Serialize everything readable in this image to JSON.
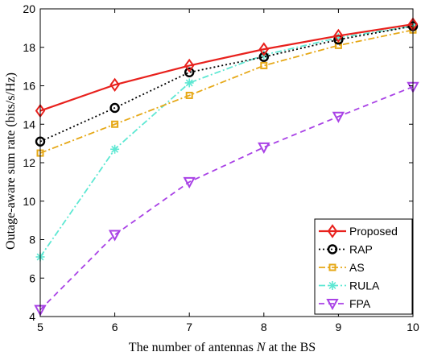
{
  "chart_data": {
    "type": "line",
    "xlabel_prefix": "The number of antennas ",
    "xlabel_var": "N",
    "xlabel_suffix": " at the BS",
    "ylabel": "Outage-aware sum rate (bits/s/Hz)",
    "x": [
      5,
      6,
      7,
      8,
      9,
      10
    ],
    "xlim": [
      5,
      10
    ],
    "ylim": [
      4,
      20
    ],
    "xticks": [
      5,
      6,
      7,
      8,
      9,
      10
    ],
    "yticks": [
      4,
      6,
      8,
      10,
      12,
      14,
      16,
      18,
      20
    ],
    "grid": false,
    "legend_position": "bottom-right",
    "series": [
      {
        "name": "Proposed",
        "values": [
          14.7,
          16.05,
          17.05,
          17.9,
          18.6,
          19.2
        ],
        "color": "#e8211d",
        "dash": "solid",
        "marker": "diamond"
      },
      {
        "name": "RAP",
        "values": [
          13.1,
          14.85,
          16.7,
          17.5,
          18.4,
          19.1
        ],
        "color": "#000000",
        "dash": "dotted",
        "marker": "circle"
      },
      {
        "name": "AS",
        "values": [
          12.5,
          14.0,
          15.5,
          17.05,
          18.1,
          18.9
        ],
        "color": "#e6a817",
        "dash": "dashdot",
        "marker": "square"
      },
      {
        "name": "RULA",
        "values": [
          7.1,
          12.7,
          16.15,
          17.6,
          18.5,
          19.1
        ],
        "color": "#5ee8d3",
        "dash": "dashdot",
        "marker": "asterisk"
      },
      {
        "name": "FPA",
        "values": [
          4.35,
          8.25,
          11.0,
          12.8,
          14.4,
          15.95
        ],
        "color": "#a942e6",
        "dash": "dashed",
        "marker": "triangle-down"
      }
    ]
  }
}
